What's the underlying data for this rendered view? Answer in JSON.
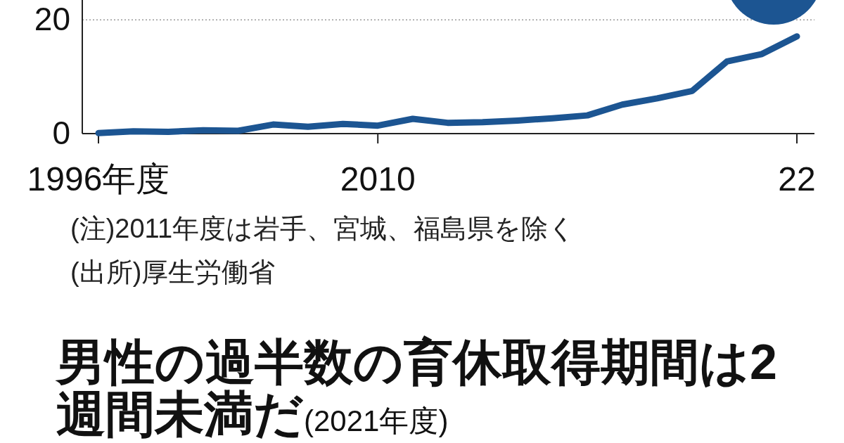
{
  "chart_data": {
    "type": "line",
    "title": "男性の過半数の育休取得期間は2週間未満だ",
    "subtitle": "(2021年度)",
    "categories": [
      "1996年度",
      null,
      null,
      null,
      null,
      null,
      null,
      null,
      "2010",
      null,
      null,
      null,
      null,
      null,
      null,
      null,
      null,
      null,
      null,
      null,
      "22"
    ],
    "values": [
      0.1,
      0.4,
      0.3,
      0.6,
      0.5,
      1.6,
      1.2,
      1.7,
      1.4,
      2.6,
      1.9,
      2.0,
      2.3,
      2.7,
      3.2,
      5.1,
      6.2,
      7.5,
      12.7,
      14.0,
      17.1
    ],
    "color": "#1c5592",
    "ylim": [
      0,
      23.5
    ],
    "yticks": [
      0,
      20
    ],
    "grid": "y",
    "annotations": [
      "(注)2011年度は岩手、宮城、福島県を除く",
      "(出所)厚生労働省"
    ]
  }
}
